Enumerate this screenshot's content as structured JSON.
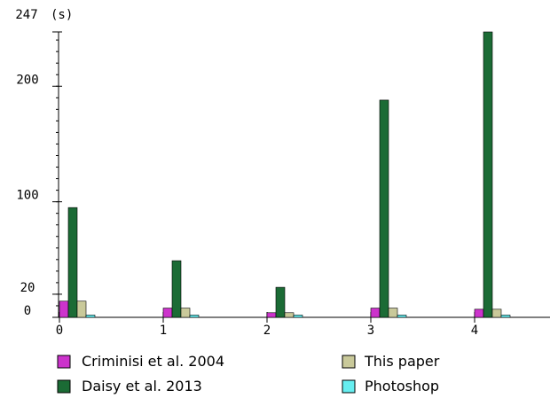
{
  "chart_data": {
    "type": "bar",
    "y_unit_label": "(s)",
    "categories": [
      "0",
      "1",
      "2",
      "3",
      "4"
    ],
    "series": [
      {
        "name": "Criminisi et al. 2004",
        "color": "#cc33cc",
        "values": [
          14,
          8,
          4,
          8,
          7
        ]
      },
      {
        "name": "Daisy et al. 2013",
        "color": "#1b6b35",
        "values": [
          95,
          49,
          26,
          188,
          247
        ]
      },
      {
        "name": "This paper",
        "color": "#c9c99a",
        "values": [
          14,
          8,
          4,
          8,
          7
        ]
      },
      {
        "name": "Photoshop",
        "color": "#66eef0",
        "values": [
          2,
          2,
          2,
          2,
          2
        ]
      }
    ],
    "y_ticks": [
      {
        "value": 0,
        "label": "0"
      },
      {
        "value": 20,
        "label": "20"
      },
      {
        "value": 100,
        "label": "100"
      },
      {
        "value": 200,
        "label": "200"
      },
      {
        "value": 247,
        "label": "247"
      }
    ],
    "ylim": [
      0,
      247
    ],
    "grid": false,
    "legend_position": "bottom"
  }
}
